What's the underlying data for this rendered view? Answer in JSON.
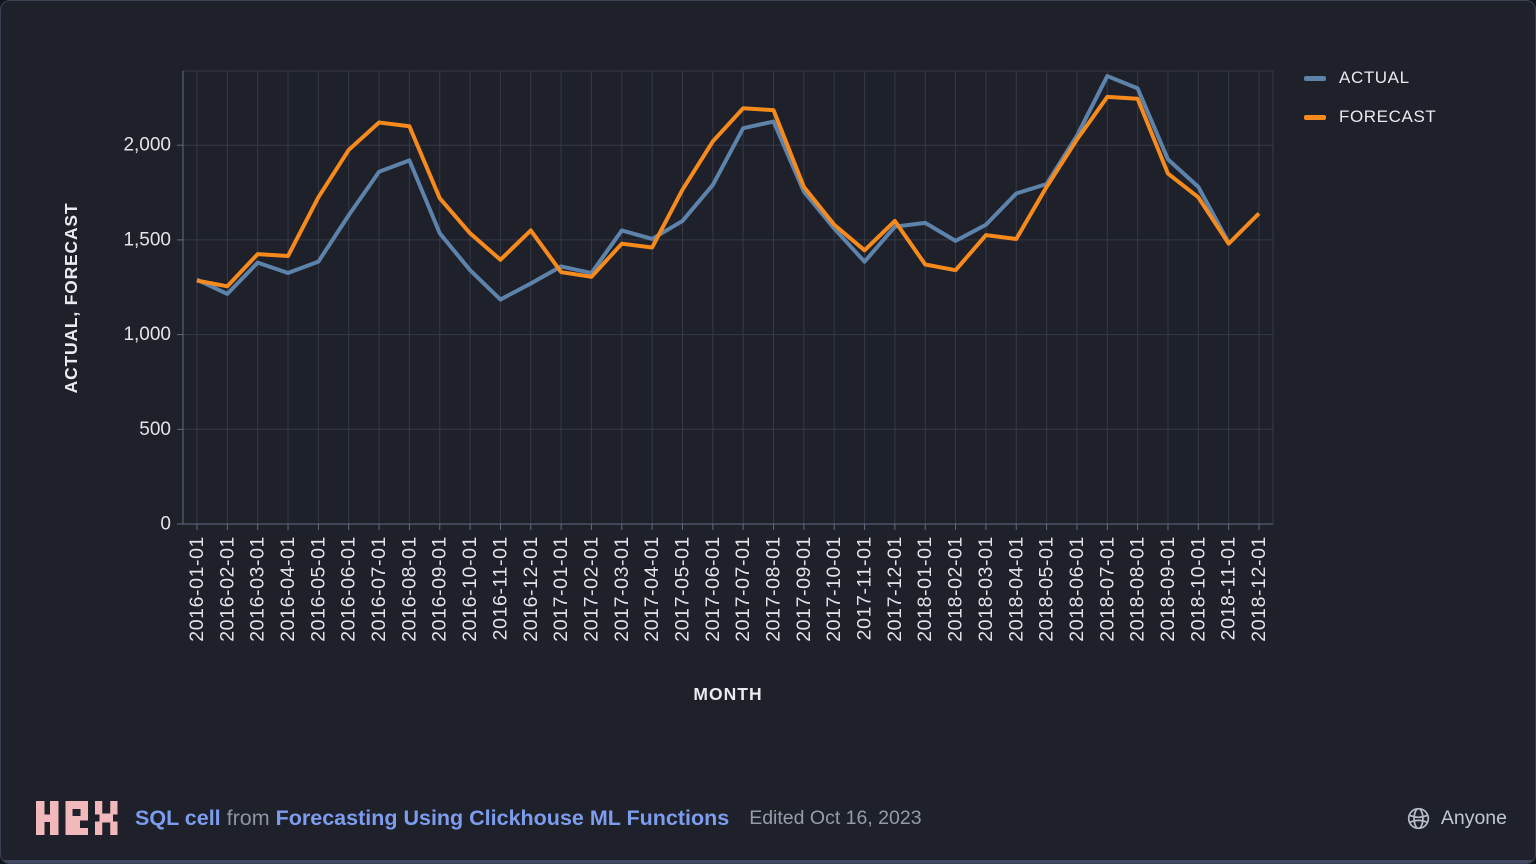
{
  "chart_data": {
    "type": "line",
    "x": [
      "2016-01-01",
      "2016-02-01",
      "2016-03-01",
      "2016-04-01",
      "2016-05-01",
      "2016-06-01",
      "2016-07-01",
      "2016-08-01",
      "2016-09-01",
      "2016-10-01",
      "2016-11-01",
      "2016-12-01",
      "2017-01-01",
      "2017-02-01",
      "2017-03-01",
      "2017-04-01",
      "2017-05-01",
      "2017-06-01",
      "2017-07-01",
      "2017-08-01",
      "2017-09-01",
      "2017-10-01",
      "2017-11-01",
      "2017-12-01",
      "2018-01-01",
      "2018-02-01",
      "2018-03-01",
      "2018-04-01",
      "2018-05-01",
      "2018-06-01",
      "2018-07-01",
      "2018-08-01",
      "2018-09-01",
      "2018-10-01",
      "2018-11-01",
      "2018-12-01"
    ],
    "series": [
      {
        "name": "ACTUAL",
        "color": "#5e83ab",
        "values": [
          1290,
          1215,
          1380,
          1325,
          1385,
          1630,
          1860,
          1920,
          1535,
          1340,
          1185,
          1270,
          1360,
          1325,
          1550,
          1505,
          1600,
          1790,
          2090,
          2125,
          1755,
          1560,
          1385,
          1570,
          1590,
          1495,
          1580,
          1745,
          1795,
          2050,
          2365,
          2300,
          1925,
          1780,
          1485,
          null
        ]
      },
      {
        "name": "FORECAST",
        "color": "#f68a1c",
        "values": [
          1285,
          1255,
          1425,
          1415,
          1725,
          1975,
          2120,
          2100,
          1720,
          1535,
          1395,
          1550,
          1330,
          1305,
          1480,
          1460,
          1765,
          2020,
          2195,
          2185,
          1780,
          1580,
          1445,
          1600,
          1370,
          1340,
          1525,
          1505,
          1780,
          2030,
          2255,
          2245,
          1850,
          1725,
          1480,
          1640
        ]
      }
    ],
    "xlabel": "MONTH",
    "ylabel": "ACTUAL, FORECAST",
    "yticks": [
      0,
      500,
      1000,
      1500,
      2000
    ],
    "ytick_labels": [
      "0",
      "500",
      "1,000",
      "1,500",
      "2,000"
    ],
    "ylim": [
      0,
      2415
    ],
    "grid": true,
    "legend_position": "top-right"
  },
  "colors": {
    "background": "#1e202a",
    "gridline": "#363948",
    "axis_domain": "#646a80",
    "tick_label": "#e3e4e9",
    "axis_title": "#e9ebf0",
    "actual_line": "#5e83ab",
    "forecast_line": "#f68a1c",
    "footer_accent": "#7d9cee",
    "logo_pink": "#f2b9bd"
  },
  "footer": {
    "logo_text": "HEX",
    "cell_type": "SQL cell",
    "from_label": "from",
    "project_title": "Forecasting Using Clickhouse ML Functions",
    "edited": "Edited Oct 16, 2023",
    "visibility": "Anyone"
  }
}
